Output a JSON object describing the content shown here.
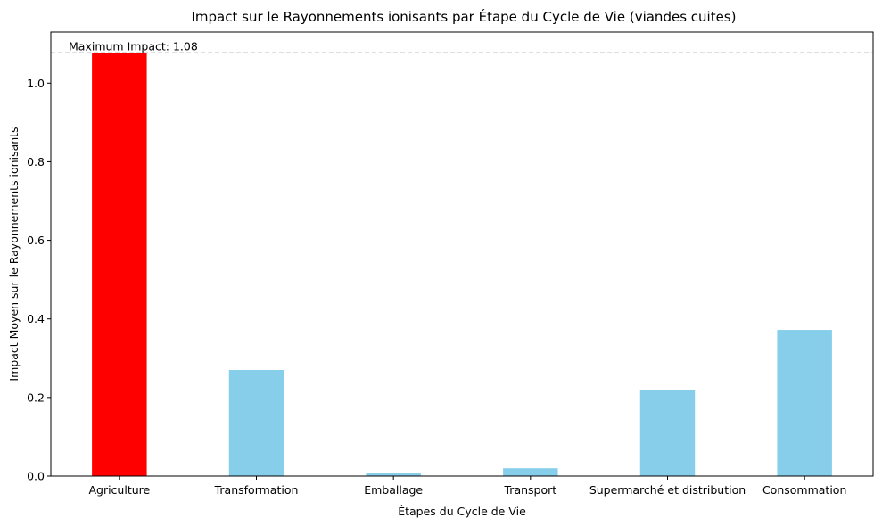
{
  "chart_data": {
    "type": "bar",
    "title": "Impact sur le Rayonnements ionisants par Étape du Cycle de Vie (viandes cuites)",
    "xlabel": "Étapes du Cycle de Vie",
    "ylabel": "Impact Moyen sur le Rayonnements ionisants",
    "categories": [
      "Agriculture",
      "Transformation",
      "Emballage",
      "Transport",
      "Supermarché et distribution",
      "Consommation"
    ],
    "values": [
      1.077,
      0.27,
      0.009,
      0.02,
      0.219,
      0.372
    ],
    "ylim": [
      0,
      1.13
    ],
    "yticks": [
      0.0,
      0.2,
      0.4,
      0.6,
      0.8,
      1.0
    ],
    "ytick_labels": [
      "0.0",
      "0.2",
      "0.4",
      "0.6",
      "0.8",
      "1.0"
    ],
    "bar_color": "#87CEEB",
    "highlight_color": "#FF0000",
    "highlight_index": 0,
    "max_line": {
      "value": 1.077,
      "label": "Maximum Impact: 1.08",
      "color": "#808080",
      "style": "dashed"
    },
    "grid": false,
    "legend": "none"
  }
}
